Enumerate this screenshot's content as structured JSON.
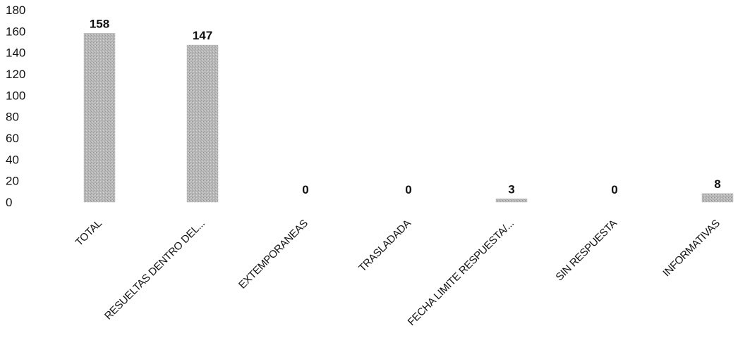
{
  "chart_data": {
    "type": "bar",
    "categories": [
      "TOTAL",
      "RESUELTAS DENTRO DEL...",
      "EXTEMPORANEAS",
      "TRASLADADA",
      "FECHA LIMITE RESPUESTA/...",
      "SIN RESPUESTA",
      "INFORMATIVAS"
    ],
    "values": [
      158,
      147,
      0,
      0,
      3,
      0,
      8
    ],
    "data_labels": [
      "158",
      "147",
      "0",
      "0",
      "3",
      "0",
      "8"
    ],
    "yticks": [
      0,
      20,
      40,
      60,
      80,
      100,
      120,
      140,
      160,
      180
    ],
    "ylim": [
      0,
      180
    ],
    "bar_color": "#b8b8b8",
    "grid": false,
    "legend": "none"
  }
}
